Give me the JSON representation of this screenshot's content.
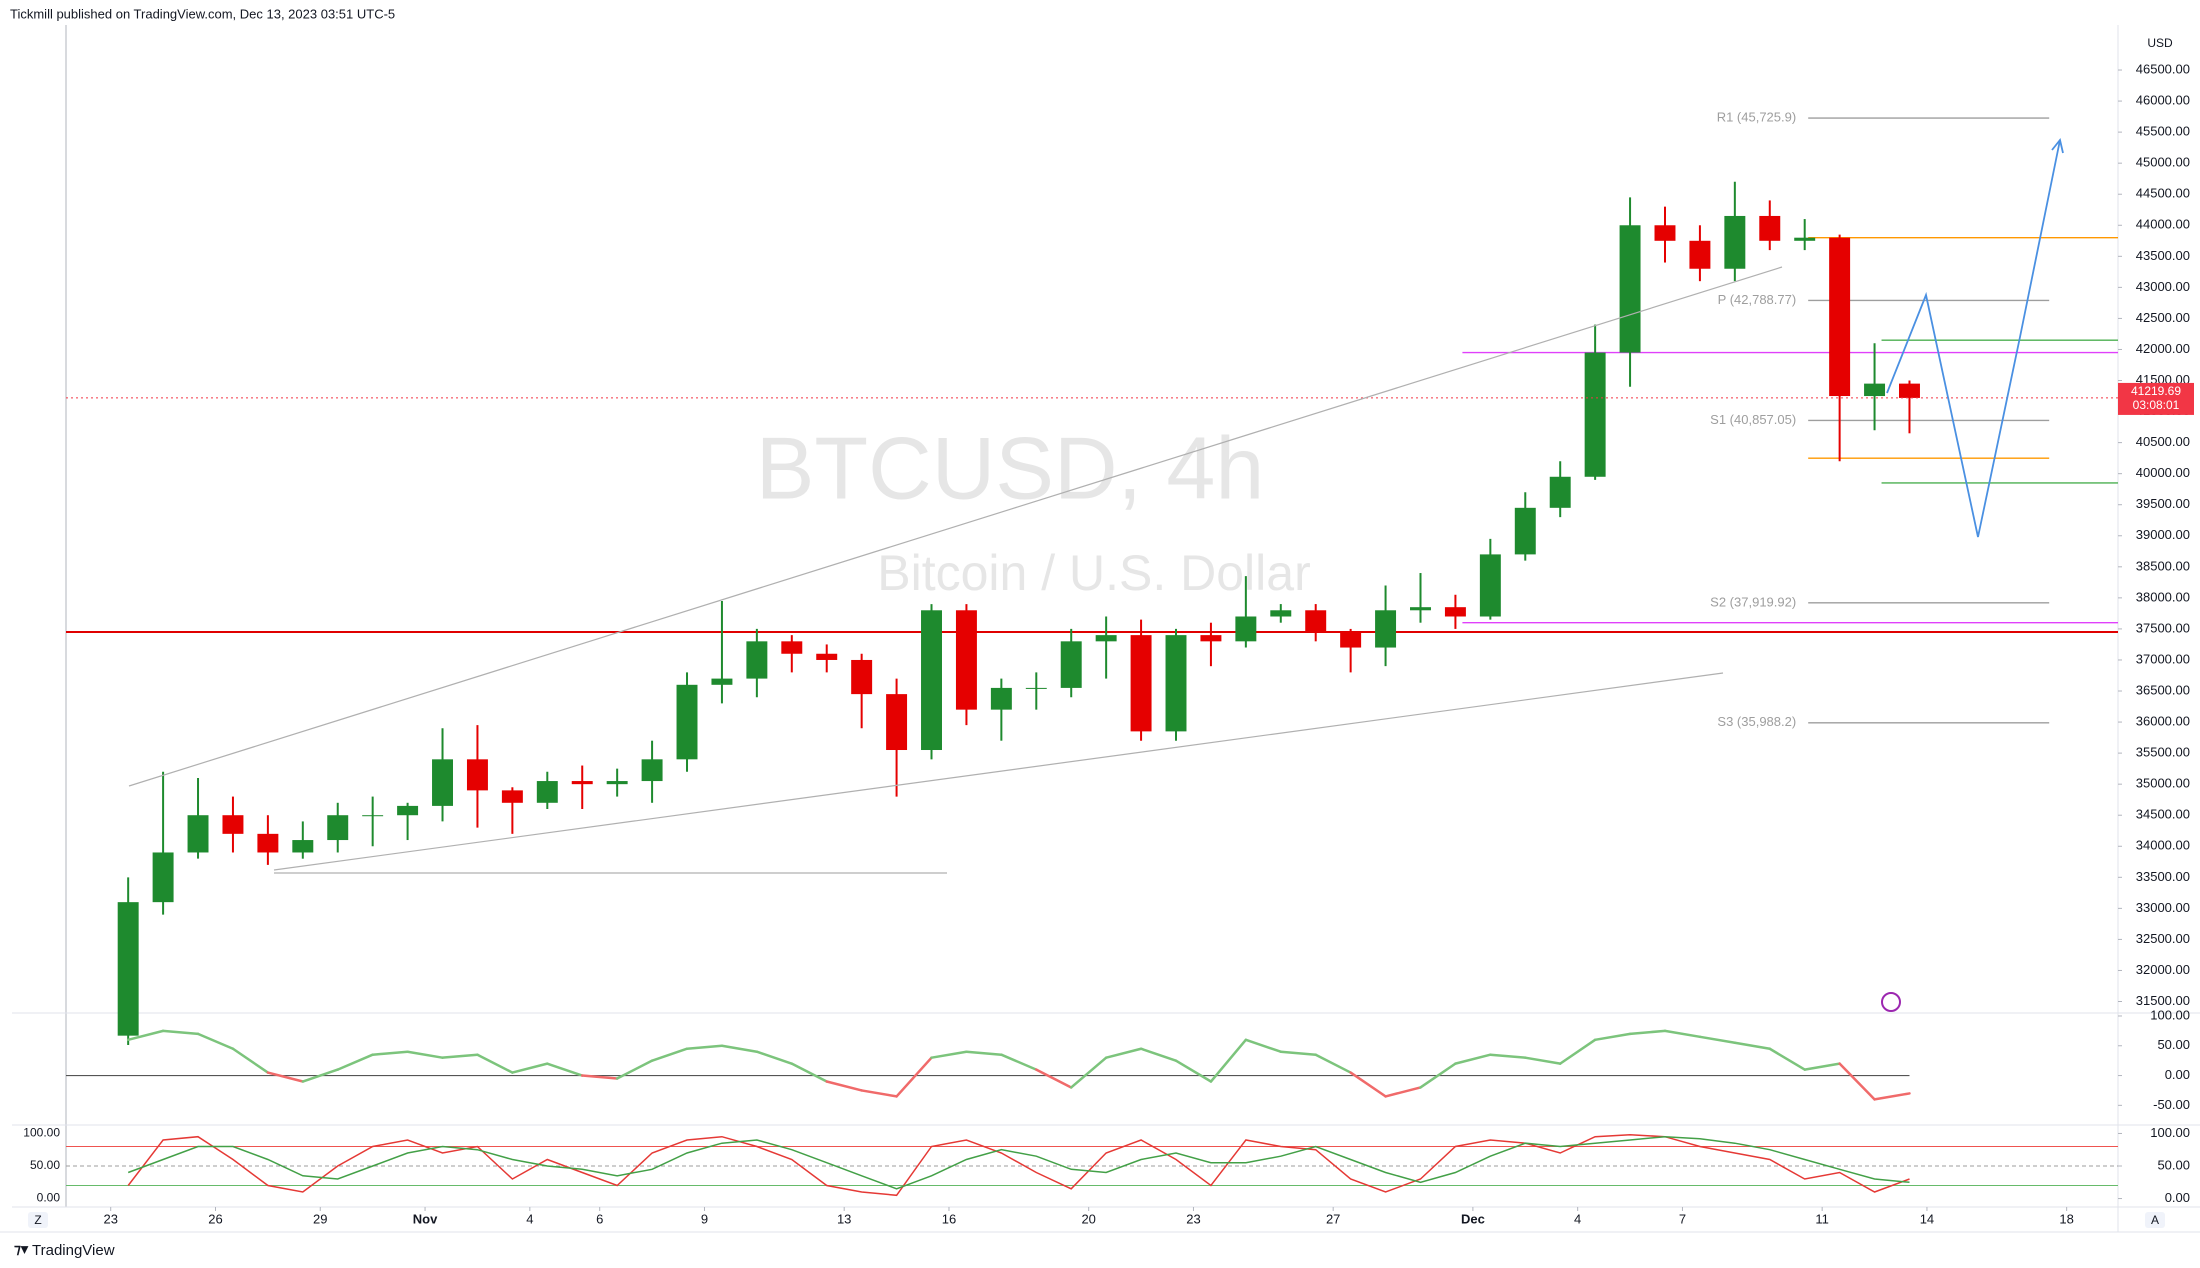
{
  "header": {
    "text": "Tickmill published on TradingView.com, Dec 13, 2023 03:51 UTC-5"
  },
  "footer": {
    "brand": "TradingView",
    "left": "Z",
    "right": "A"
  },
  "chart_data": [
    {
      "type": "candlestick",
      "title": "BTCUSD, 4h",
      "subtitle": "Bitcoin / U.S. Dollar",
      "y_unit": "USD",
      "x": [
        0,
        1,
        2,
        3,
        4,
        5,
        6,
        7,
        8,
        9,
        10,
        11,
        12,
        13,
        14,
        15,
        16,
        17,
        18,
        19,
        20,
        21,
        22,
        23,
        24,
        25,
        26,
        27,
        28,
        29,
        30,
        31,
        32,
        33,
        34,
        35,
        36,
        37,
        38,
        39,
        40,
        41,
        42,
        43,
        44,
        45,
        46,
        47,
        48,
        49,
        50,
        51
      ],
      "open": [
        30950,
        33100,
        33900,
        34500,
        34200,
        33900,
        34100,
        34500,
        34500,
        34650,
        35400,
        34900,
        34700,
        35050,
        35000,
        35050,
        35400,
        36600,
        36700,
        37300,
        37100,
        37000,
        36450,
        35550,
        37800,
        36200,
        36550,
        36550,
        37300,
        37400,
        35850,
        37400,
        37300,
        37700,
        37800,
        37450,
        37200,
        37800,
        37850,
        37700,
        38700,
        39450,
        39950,
        41950,
        44000,
        43750,
        43300,
        44150,
        43750,
        43800,
        41250,
        41450
      ],
      "high": [
        33500,
        35200,
        35100,
        34800,
        34500,
        34400,
        34700,
        34800,
        34700,
        35900,
        35950,
        34950,
        35200,
        35300,
        35250,
        35700,
        36800,
        37950,
        37500,
        37400,
        37250,
        37100,
        36700,
        37900,
        37900,
        36700,
        36800,
        37500,
        37700,
        37650,
        37500,
        37600,
        38350,
        37900,
        37900,
        37500,
        38200,
        38400,
        38050,
        38950,
        39700,
        40200,
        42400,
        44450,
        44300,
        44000,
        44700,
        44400,
        44100,
        43850,
        42100,
        41500
      ],
      "low": [
        30800,
        32900,
        33800,
        33900,
        33700,
        33800,
        33900,
        34000,
        34100,
        34400,
        34300,
        34200,
        34600,
        34600,
        34800,
        34700,
        35200,
        36300,
        36400,
        36800,
        36800,
        35900,
        34800,
        35400,
        35950,
        35700,
        36200,
        36400,
        36700,
        35700,
        35700,
        36900,
        37200,
        37600,
        37300,
        36800,
        36900,
        37600,
        37500,
        37650,
        38600,
        39300,
        39900,
        41400,
        43400,
        43100,
        43100,
        43600,
        43600,
        40200,
        40700,
        40650
      ],
      "close": [
        33100,
        33900,
        34500,
        34200,
        33900,
        34100,
        34500,
        34500,
        34650,
        35400,
        34900,
        34700,
        35050,
        35000,
        35050,
        35400,
        36600,
        36700,
        37300,
        37100,
        37000,
        36450,
        35550,
        37800,
        36200,
        36550,
        36550,
        37300,
        37400,
        35850,
        37400,
        37300,
        37700,
        37800,
        37450,
        37200,
        37800,
        37850,
        37700,
        38700,
        39450,
        39950,
        41950,
        44000,
        43750,
        43300,
        44150,
        43750,
        43800,
        41250,
        41450,
        41219.69
      ],
      "up_color": "#1e8a2e",
      "down_color": "#e50000",
      "xlim": [
        -1.28,
        57.47
      ],
      "ylim": [
        31315,
        47225
      ],
      "xticks": [
        {
          "value": 0,
          "label": "23"
        },
        {
          "value": 3,
          "label": "26"
        },
        {
          "value": 6,
          "label": "29"
        },
        {
          "value": 9,
          "label": "Nov"
        },
        {
          "value": 12,
          "label": "4"
        },
        {
          "value": 14,
          "label": "6"
        },
        {
          "value": 17,
          "label": "9"
        },
        {
          "value": 21,
          "label": "13"
        },
        {
          "value": 24,
          "label": "16"
        },
        {
          "value": 28,
          "label": "20"
        },
        {
          "value": 31,
          "label": "23"
        },
        {
          "value": 35,
          "label": "27"
        },
        {
          "value": 39,
          "label": "Dec"
        },
        {
          "value": 42,
          "label": "4"
        },
        {
          "value": 45,
          "label": "7"
        },
        {
          "value": 49,
          "label": "11"
        },
        {
          "value": 52,
          "label": "14"
        },
        {
          "value": 56,
          "label": "18"
        }
      ],
      "yticks": [
        {
          "value": 31500,
          "label": "31500.00"
        },
        {
          "value": 32000,
          "label": "32000.00"
        },
        {
          "value": 32500,
          "label": "32500.00"
        },
        {
          "value": 33000,
          "label": "33000.00"
        },
        {
          "value": 33500,
          "label": "33500.00"
        },
        {
          "value": 34000,
          "label": "34000.00"
        },
        {
          "value": 34500,
          "label": "34500.00"
        },
        {
          "value": 35000,
          "label": "35000.00"
        },
        {
          "value": 35500,
          "label": "35500.00"
        },
        {
          "value": 36000,
          "label": "36000.00"
        },
        {
          "value": 36500,
          "label": "36500.00"
        },
        {
          "value": 37000,
          "label": "37000.00"
        },
        {
          "value": 37500,
          "label": "37500.00"
        },
        {
          "value": 38000,
          "label": "38000.00"
        },
        {
          "value": 38500,
          "label": "38500.00"
        },
        {
          "value": 39000,
          "label": "39000.00"
        },
        {
          "value": 39500,
          "label": "39500.00"
        },
        {
          "value": 40000,
          "label": "40000.00"
        },
        {
          "value": 40500,
          "label": "40500.00"
        },
        {
          "value": 41000,
          "label": "41000.00"
        },
        {
          "value": 41500,
          "label": "41500.00"
        },
        {
          "value": 42000,
          "label": "42000.00"
        },
        {
          "value": 42500,
          "label": "42500.00"
        },
        {
          "value": 43000,
          "label": "43000.00"
        },
        {
          "value": 43500,
          "label": "43500.00"
        },
        {
          "value": 44000,
          "label": "44000.00"
        },
        {
          "value": 44500,
          "label": "44500.00"
        },
        {
          "value": 45000,
          "label": "45000.00"
        },
        {
          "value": 45500,
          "label": "45500.00"
        },
        {
          "value": 46000,
          "label": "46000.00"
        },
        {
          "value": 46500,
          "label": "46500.00"
        }
      ],
      "last_price": 41219.69,
      "countdown": "03:08:01",
      "last_color": "#f23645",
      "lines": [
        {
          "value": 45725.9,
          "label": "R1 (45,725.9)",
          "color": "#9e9e9e",
          "x": [
            48.6,
            55.5
          ]
        },
        {
          "value": 42788.77,
          "label": "P (42,788.77)",
          "color": "#9e9e9e",
          "x": [
            48.6,
            55.5
          ]
        },
        {
          "value": 40857.05,
          "label": "S1 (40,857.05)",
          "color": "#9e9e9e",
          "x": [
            48.6,
            55.5
          ]
        },
        {
          "value": 37919.92,
          "label": "S2 (37,919.92)",
          "color": "#9e9e9e",
          "x": [
            48.6,
            55.5
          ]
        },
        {
          "value": 35988.2,
          "label": "S3 (35,988.2)",
          "color": "#9e9e9e",
          "x": [
            48.6,
            55.5
          ]
        },
        {
          "value": 43800,
          "color": "#ff9800",
          "x": [
            48.6,
            57.47
          ]
        },
        {
          "value": 40250,
          "color": "#ff9800",
          "x": [
            48.6,
            55.5
          ]
        },
        {
          "value": 42150,
          "color": "#4caf50",
          "x": [
            50.7,
            57.47
          ]
        },
        {
          "value": 39850,
          "color": "#4caf50",
          "x": [
            50.7,
            57.47
          ]
        },
        {
          "value": 41950,
          "color": "#e040fb",
          "x": [
            38.7,
            57.47
          ]
        },
        {
          "value": 37600,
          "color": "#e040fb",
          "x": [
            38.7,
            57.47
          ]
        },
        {
          "value": 37450,
          "color": "#e00000",
          "x": [
            -1.28,
            57.47
          ]
        }
      ]
    },
    {
      "type": "line",
      "style": "sign-colored",
      "color_above": "#7cc47c",
      "color_below": "#f06a6a",
      "zero_color": "#555555",
      "x": [
        0,
        1,
        2,
        3,
        4,
        5,
        6,
        7,
        8,
        9,
        10,
        11,
        12,
        13,
        14,
        15,
        16,
        17,
        18,
        19,
        20,
        21,
        22,
        23,
        24,
        25,
        26,
        27,
        28,
        29,
        30,
        31,
        32,
        33,
        34,
        35,
        36,
        37,
        38,
        39,
        40,
        41,
        42,
        43,
        44,
        45,
        46,
        47,
        48,
        49,
        50,
        51
      ],
      "values": [
        60,
        75,
        70,
        45,
        5,
        -10,
        10,
        35,
        40,
        30,
        35,
        5,
        20,
        0,
        -5,
        25,
        45,
        50,
        40,
        20,
        -10,
        -25,
        -35,
        30,
        40,
        35,
        10,
        -20,
        30,
        45,
        25,
        -10,
        60,
        40,
        35,
        5,
        -35,
        -20,
        20,
        35,
        30,
        20,
        60,
        70,
        75,
        65,
        55,
        45,
        10,
        20,
        -40,
        -30
      ],
      "ylim": [
        -83,
        105
      ],
      "yticks": [
        {
          "value": 100,
          "label": "100.00"
        },
        {
          "value": 50,
          "label": "50.00"
        },
        {
          "value": 0,
          "label": "0.00"
        },
        {
          "value": -50,
          "label": "-50.00"
        }
      ]
    },
    {
      "type": "line",
      "x": [
        0,
        1,
        2,
        3,
        4,
        5,
        6,
        7,
        8,
        9,
        10,
        11,
        12,
        13,
        14,
        15,
        16,
        17,
        18,
        19,
        20,
        21,
        22,
        23,
        24,
        25,
        26,
        27,
        28,
        29,
        30,
        31,
        32,
        33,
        34,
        35,
        36,
        37,
        38,
        39,
        40,
        41,
        42,
        43,
        44,
        45,
        46,
        47,
        48,
        49,
        50,
        51
      ],
      "series": [
        {
          "color": "#e53935",
          "values": [
            20,
            90,
            95,
            60,
            20,
            10,
            50,
            80,
            90,
            70,
            80,
            30,
            60,
            40,
            20,
            70,
            90,
            95,
            80,
            60,
            20,
            10,
            5,
            80,
            90,
            70,
            40,
            15,
            70,
            90,
            60,
            20,
            90,
            80,
            75,
            30,
            10,
            30,
            80,
            90,
            85,
            70,
            95,
            98,
            95,
            80,
            70,
            60,
            30,
            40,
            10,
            30
          ]
        },
        {
          "color": "#43a047",
          "values": [
            40,
            60,
            80,
            80,
            60,
            35,
            30,
            50,
            70,
            80,
            75,
            60,
            50,
            45,
            35,
            45,
            70,
            85,
            90,
            75,
            55,
            35,
            15,
            35,
            60,
            75,
            65,
            45,
            40,
            60,
            70,
            55,
            55,
            65,
            80,
            60,
            40,
            25,
            40,
            65,
            85,
            80,
            85,
            90,
            95,
            92,
            85,
            75,
            60,
            45,
            30,
            25
          ]
        }
      ],
      "hlines": [
        {
          "value": 80,
          "color": "#ef5350"
        },
        {
          "value": 50,
          "color": "#9e9e9e"
        },
        {
          "value": 20,
          "color": "#66bb6a"
        }
      ],
      "ylim": [
        -13,
        113
      ],
      "yticks": [
        {
          "value": 100,
          "label": "100.00"
        },
        {
          "value": 50,
          "label": "50.00"
        },
        {
          "value": 0,
          "label": "0.00"
        }
      ]
    }
  ]
}
